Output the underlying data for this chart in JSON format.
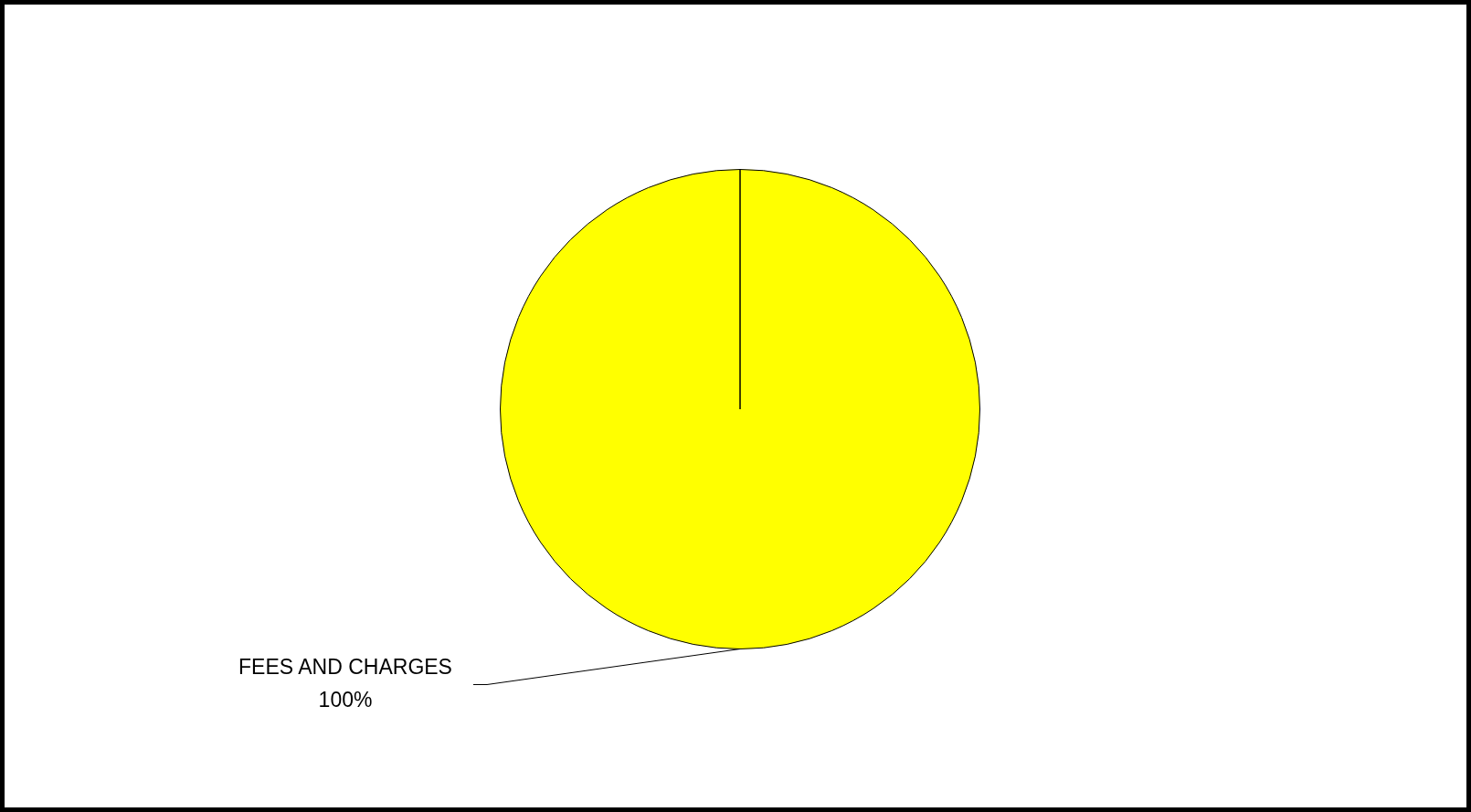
{
  "chart_data": {
    "type": "pie",
    "categories": [
      "FEES AND CHARGES"
    ],
    "values": [
      100
    ],
    "colors": [
      "#ffff00"
    ],
    "value_labels": [
      "100%"
    ],
    "legend": false
  }
}
